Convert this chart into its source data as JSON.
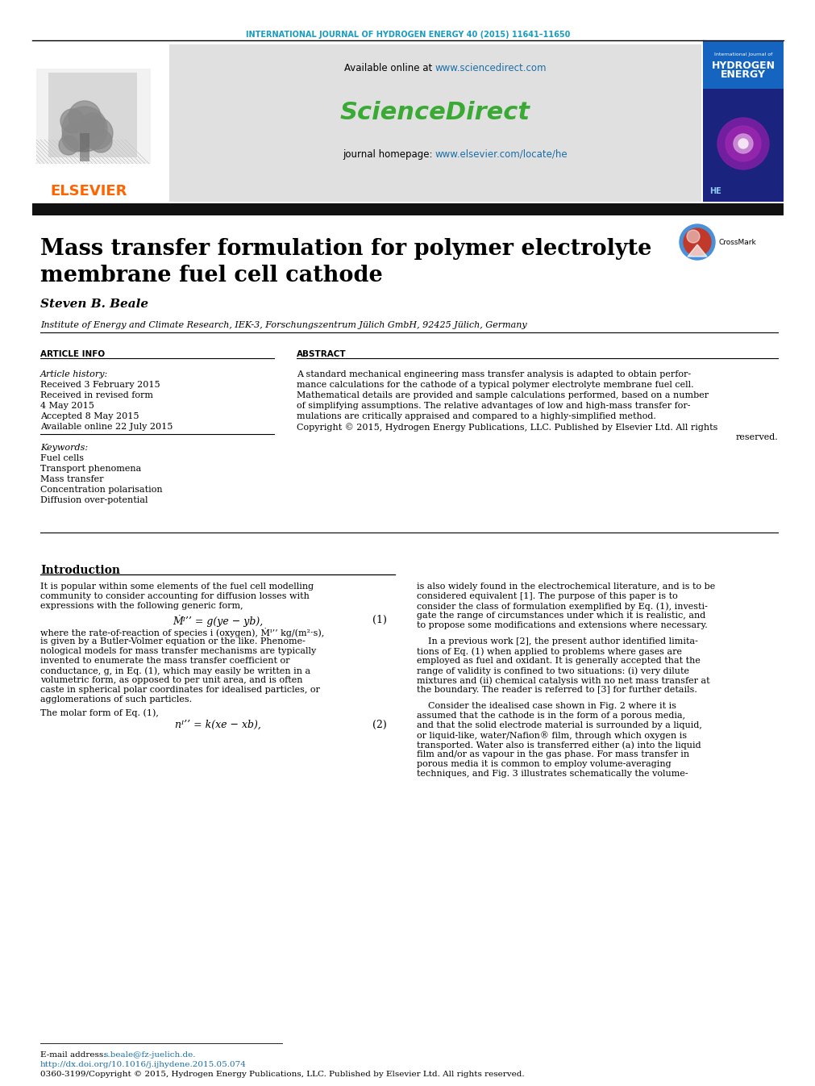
{
  "journal_header": "INTERNATIONAL JOURNAL OF HYDROGEN ENERGY 40 (2015) 11641–11650",
  "journal_header_color": "#1a9bbf",
  "sciencedirect_text": "ScienceDirect",
  "sciencedirect_color": "#3aaa35",
  "sciencedirect_url": "www.sciencedirect.com",
  "homepage_url": "www.elsevier.com/locate/he",
  "elsevier_color": "#ff6400",
  "elsevier_text": "ELSEVIER",
  "title_line1": "Mass transfer formulation for polymer electrolyte",
  "title_line2": "membrane fuel cell cathode",
  "author": "Steven B. Beale",
  "affiliation": "Institute of Energy and Climate Research, IEK-3, Forschungszentrum Jülich GmbH, 92425 Jülich, Germany",
  "article_info_header": "ARTICLE INFO",
  "abstract_header": "ABSTRACT",
  "article_history_label": "Article history:",
  "received1": "Received 3 February 2015",
  "revised_label": "Received in revised form",
  "revised_date": "4 May 2015",
  "accepted": "Accepted 8 May 2015",
  "available": "Available online 22 July 2015",
  "keywords_label": "Keywords:",
  "keywords": [
    "Fuel cells",
    "Transport phenomena",
    "Mass transfer",
    "Concentration polarisation",
    "Diffusion over-potential"
  ],
  "abstract_lines": [
    "A standard mechanical engineering mass transfer analysis is adapted to obtain perfor-",
    "mance calculations for the cathode of a typical polymer electrolyte membrane fuel cell.",
    "Mathematical details are provided and sample calculations performed, based on a number",
    "of simplifying assumptions. The relative advantages of low and high-mass transfer for-",
    "mulations are critically appraised and compared to a highly-simplified method."
  ],
  "copyright_lines": [
    "Copyright © 2015, Hydrogen Energy Publications, LLC. Published by Elsevier Ltd. All rights",
    "                                                                                    reserved."
  ],
  "intro_header": "Introduction",
  "intro_para": [
    "It is popular within some elements of the fuel cell modelling",
    "community to consider accounting for diffusion losses with",
    "expressions with the following generic form,"
  ],
  "eq1_text": "Ṁᴵ’’ = g(ye − yb),",
  "eq1_num": "(1)",
  "post_eq1": [
    "where the rate-of-reaction of species i (oxygen), Ṁᴵ’’ kg/(m²·s),",
    "is given by a Butler-Volmer equation or the like. Phenome-",
    "nological models for mass transfer mechanisms are typically",
    "invented to enumerate the mass transfer coefficient or",
    "conductance, g, in Eq. (1), which may easily be written in a",
    "volumetric form, as opposed to per unit area, and is often",
    "caste in spherical polar coordinates for idealised particles, or",
    "agglomerations of such particles."
  ],
  "molar_form": "The molar form of Eq. (1),",
  "eq2_text": "nᴵ’’ = k(xe − xb),",
  "eq2_num": "(2)",
  "right_para1": [
    "is also widely found in the electrochemical literature, and is to be",
    "considered equivalent [1]. The purpose of this paper is to",
    "consider the class of formulation exemplified by Eq. (1), investi-",
    "gate the range of circumstances under which it is realistic, and",
    "to propose some modifications and extensions where necessary."
  ],
  "right_para2": [
    "    In a previous work [2], the present author identified limita-",
    "tions of Eq. (1) when applied to problems where gases are",
    "employed as fuel and oxidant. It is generally accepted that the",
    "range of validity is confined to two situations: (i) very dilute",
    "mixtures and (ii) chemical catalysis with no net mass transfer at",
    "the boundary. The reader is referred to [3] for further details."
  ],
  "right_para3": [
    "    Consider the idealised case shown in Fig. 2 where it is",
    "assumed that the cathode is in the form of a porous media,",
    "and that the solid electrode material is surrounded by a liquid,",
    "or liquid-like, water/Nafion® film, through which oxygen is",
    "transported. Water also is transferred either (a) into the liquid",
    "film and/or as vapour in the gas phase. For mass transfer in",
    "porous media it is common to employ volume-averaging",
    "techniques, and Fig. 3 illustrates schematically the volume-"
  ],
  "email": "E-mail address: s.beale@fz-juelich.de.",
  "email_url": "s.beale@fz-juelich.de",
  "doi": "http://dx.doi.org/10.1016/j.ijhydene.2015.05.074",
  "issn": "0360-3199/Copyright © 2015, Hydrogen Energy Publications, LLC. Published by Elsevier Ltd. All rights reserved.",
  "url_color": "#1a6ea8",
  "link_color": "#1a6ea8",
  "header_bg": "#e0e0e0",
  "black_bar_color": "#111111",
  "cover_dark": "#1a237e",
  "cover_mid": "#283593",
  "cover_purple": "#7b1fa2",
  "cover_light_purple": "#ce93d8"
}
